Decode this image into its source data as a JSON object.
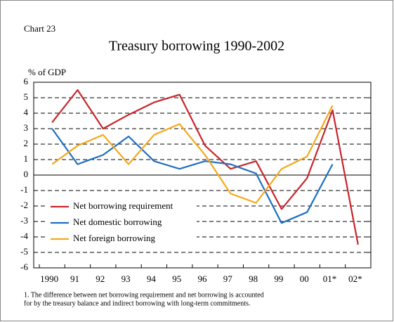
{
  "chart_data": {
    "type": "line",
    "label": "Chart 23",
    "title": "Treasury borrowing 1990-2002",
    "y_axis_label": "% of GDP",
    "categories": [
      "1990",
      "91",
      "92",
      "93",
      "94",
      "95",
      "96",
      "97",
      "98",
      "99",
      "00",
      "01*",
      "02*"
    ],
    "series": [
      {
        "name": "Net borrowing requirement",
        "color": "#c8262b",
        "values": [
          3.4,
          5.5,
          3.0,
          3.9,
          4.7,
          5.2,
          1.9,
          0.4,
          0.9,
          -2.2,
          -0.2,
          4.2,
          -4.5
        ]
      },
      {
        "name": "Net domestic borrowing",
        "color": "#1f6fc0",
        "values": [
          3.0,
          0.7,
          1.3,
          2.5,
          0.9,
          0.4,
          0.9,
          0.7,
          0.1,
          -3.1,
          -2.4,
          0.7,
          null
        ]
      },
      {
        "name": "Net foreign borrowing",
        "color": "#f5a81c",
        "values": [
          0.7,
          1.9,
          2.6,
          0.7,
          2.6,
          3.3,
          1.3,
          -1.2,
          -1.8,
          0.4,
          1.2,
          4.5,
          null
        ]
      }
    ],
    "ylim": [
      -6,
      6
    ],
    "yticks": [
      -6,
      -5,
      -4,
      -3,
      -2,
      -1,
      0,
      1,
      2,
      3,
      4,
      5,
      6
    ],
    "grid": true,
    "legend": "lower left",
    "footnote": [
      "1. The difference between net borrowing requirement and net borrowing is accounted",
      "for by the treasury balance and indirect borrowing with long-term commitments."
    ]
  }
}
